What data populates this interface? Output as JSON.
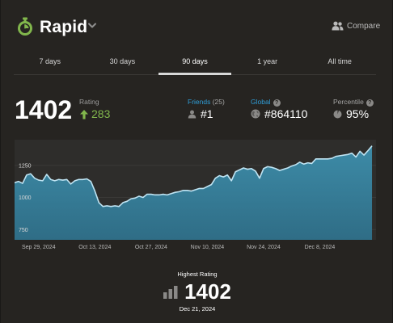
{
  "header": {
    "mode": "Rapid",
    "compare_label": "Compare"
  },
  "tabs": [
    {
      "label": "7 days",
      "active": false
    },
    {
      "label": "30 days",
      "active": false
    },
    {
      "label": "90 days",
      "active": true
    },
    {
      "label": "1 year",
      "active": false
    },
    {
      "label": "All time",
      "active": false
    }
  ],
  "stats": {
    "rating": "1402",
    "rating_label": "Rating",
    "rating_change": "283",
    "friends_label": "Friends",
    "friends_count": "(25)",
    "friends_rank": "#1",
    "global_label": "Global",
    "global_rank": "#864110",
    "percentile_label": "Percentile",
    "percentile": "95%"
  },
  "chart_data": {
    "type": "area",
    "yticks": [
      750,
      1000,
      1250
    ],
    "ylim": [
      670,
      1450
    ],
    "xlim": [
      "2024-09-23",
      "2024-12-22"
    ],
    "xtick_labels": [
      {
        "date": "2024-09-29",
        "label": "Sep 29, 2024"
      },
      {
        "date": "2024-10-13",
        "label": "Oct 13, 2024"
      },
      {
        "date": "2024-10-27",
        "label": "Oct 27, 2024"
      },
      {
        "date": "2024-11-10",
        "label": "Nov 10, 2024"
      },
      {
        "date": "2024-11-24",
        "label": "Nov 24, 2024"
      },
      {
        "date": "2024-12-08",
        "label": "Dec 8, 2024"
      }
    ],
    "points": [
      [
        "2024-09-23",
        1115
      ],
      [
        "2024-09-24",
        1125
      ],
      [
        "2024-09-25",
        1110
      ],
      [
        "2024-09-26",
        1175
      ],
      [
        "2024-09-27",
        1185
      ],
      [
        "2024-09-28",
        1150
      ],
      [
        "2024-09-29",
        1135
      ],
      [
        "2024-09-30",
        1130
      ],
      [
        "2024-10-01",
        1180
      ],
      [
        "2024-10-02",
        1140
      ],
      [
        "2024-10-03",
        1130
      ],
      [
        "2024-10-04",
        1140
      ],
      [
        "2024-10-05",
        1135
      ],
      [
        "2024-10-06",
        1140
      ],
      [
        "2024-10-07",
        1105
      ],
      [
        "2024-10-08",
        1130
      ],
      [
        "2024-10-09",
        1140
      ],
      [
        "2024-10-10",
        1140
      ],
      [
        "2024-10-11",
        1145
      ],
      [
        "2024-10-12",
        1125
      ],
      [
        "2024-10-13",
        1050
      ],
      [
        "2024-10-14",
        960
      ],
      [
        "2024-10-15",
        930
      ],
      [
        "2024-10-16",
        935
      ],
      [
        "2024-10-17",
        930
      ],
      [
        "2024-10-18",
        935
      ],
      [
        "2024-10-19",
        930
      ],
      [
        "2024-10-20",
        960
      ],
      [
        "2024-10-21",
        970
      ],
      [
        "2024-10-22",
        990
      ],
      [
        "2024-10-23",
        995
      ],
      [
        "2024-10-24",
        1010
      ],
      [
        "2024-10-25",
        1000
      ],
      [
        "2024-10-26",
        1025
      ],
      [
        "2024-10-27",
        1025
      ],
      [
        "2024-10-28",
        1020
      ],
      [
        "2024-10-29",
        1020
      ],
      [
        "2024-10-30",
        1025
      ],
      [
        "2024-10-31",
        1020
      ],
      [
        "2024-11-01",
        1030
      ],
      [
        "2024-11-02",
        1040
      ],
      [
        "2024-11-03",
        1045
      ],
      [
        "2024-11-04",
        1055
      ],
      [
        "2024-11-05",
        1055
      ],
      [
        "2024-11-06",
        1050
      ],
      [
        "2024-11-07",
        1060
      ],
      [
        "2024-11-08",
        1070
      ],
      [
        "2024-11-09",
        1070
      ],
      [
        "2024-11-10",
        1085
      ],
      [
        "2024-11-11",
        1100
      ],
      [
        "2024-11-12",
        1150
      ],
      [
        "2024-11-13",
        1170
      ],
      [
        "2024-11-14",
        1160
      ],
      [
        "2024-11-15",
        1175
      ],
      [
        "2024-11-16",
        1130
      ],
      [
        "2024-11-17",
        1200
      ],
      [
        "2024-11-18",
        1215
      ],
      [
        "2024-11-19",
        1230
      ],
      [
        "2024-11-20",
        1220
      ],
      [
        "2024-11-21",
        1225
      ],
      [
        "2024-11-22",
        1205
      ],
      [
        "2024-11-23",
        1150
      ],
      [
        "2024-11-24",
        1225
      ],
      [
        "2024-11-25",
        1240
      ],
      [
        "2024-11-26",
        1235
      ],
      [
        "2024-11-27",
        1225
      ],
      [
        "2024-11-28",
        1210
      ],
      [
        "2024-11-29",
        1220
      ],
      [
        "2024-11-30",
        1230
      ],
      [
        "2024-12-01",
        1245
      ],
      [
        "2024-12-02",
        1255
      ],
      [
        "2024-12-03",
        1275
      ],
      [
        "2024-12-04",
        1260
      ],
      [
        "2024-12-05",
        1270
      ],
      [
        "2024-12-06",
        1265
      ],
      [
        "2024-12-07",
        1300
      ],
      [
        "2024-12-08",
        1300
      ],
      [
        "2024-12-09",
        1300
      ],
      [
        "2024-12-10",
        1300
      ],
      [
        "2024-12-11",
        1305
      ],
      [
        "2024-12-12",
        1320
      ],
      [
        "2024-12-13",
        1325
      ],
      [
        "2024-12-14",
        1330
      ],
      [
        "2024-12-15",
        1335
      ],
      [
        "2024-12-16",
        1345
      ],
      [
        "2024-12-17",
        1315
      ],
      [
        "2024-12-18",
        1360
      ],
      [
        "2024-12-19",
        1330
      ],
      [
        "2024-12-20",
        1365
      ],
      [
        "2024-12-21",
        1402
      ]
    ]
  },
  "highest": {
    "label": "Highest Rating",
    "value": "1402",
    "date": "Dec 21, 2024"
  },
  "colors": {
    "background": "#262421",
    "chart_bg": "#2e2d2b",
    "chart_line": "#bfe4f3",
    "chart_fill_top": "#3d8ba7",
    "chart_fill_bottom": "#2f6d86",
    "up_green": "#81b64c",
    "link_blue": "#2f9ed8"
  }
}
